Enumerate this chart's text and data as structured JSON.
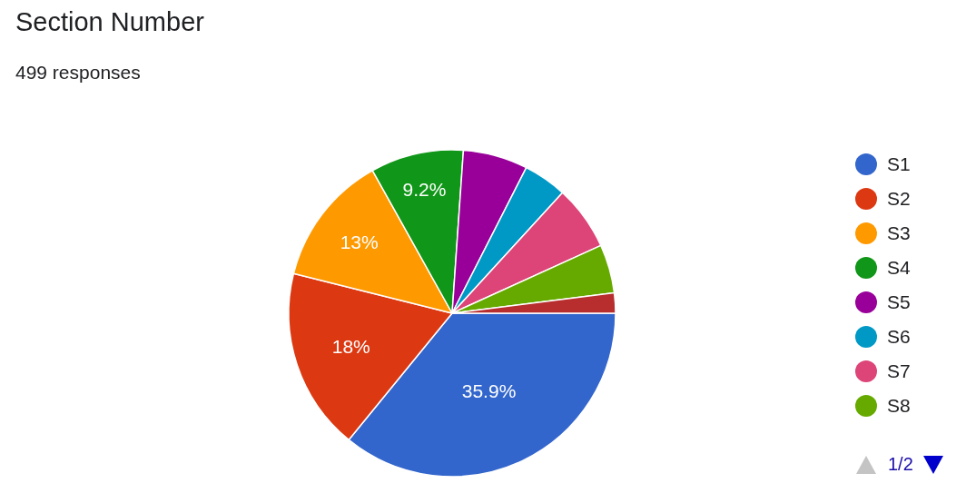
{
  "chart_data": {
    "type": "pie",
    "title": "Section Number",
    "subtitle": "499 responses",
    "categories": [
      "S1",
      "S2",
      "S3",
      "S4",
      "S5",
      "S6",
      "S7",
      "S8",
      null
    ],
    "values": [
      35.9,
      18,
      13,
      9.2,
      6.4,
      4.3,
      6.4,
      4.8,
      2.0
    ],
    "colors": [
      "#3366cc",
      "#dc3912",
      "#ff9900",
      "#109618",
      "#990099",
      "#0099c6",
      "#dd4477",
      "#66aa00",
      "#b82e2e"
    ],
    "value_labels": [
      "35.9%",
      "18%",
      "13%",
      "9.2%",
      null,
      null,
      null,
      null,
      null
    ],
    "legend": "right",
    "annotations": [
      "1/2"
    ]
  }
}
